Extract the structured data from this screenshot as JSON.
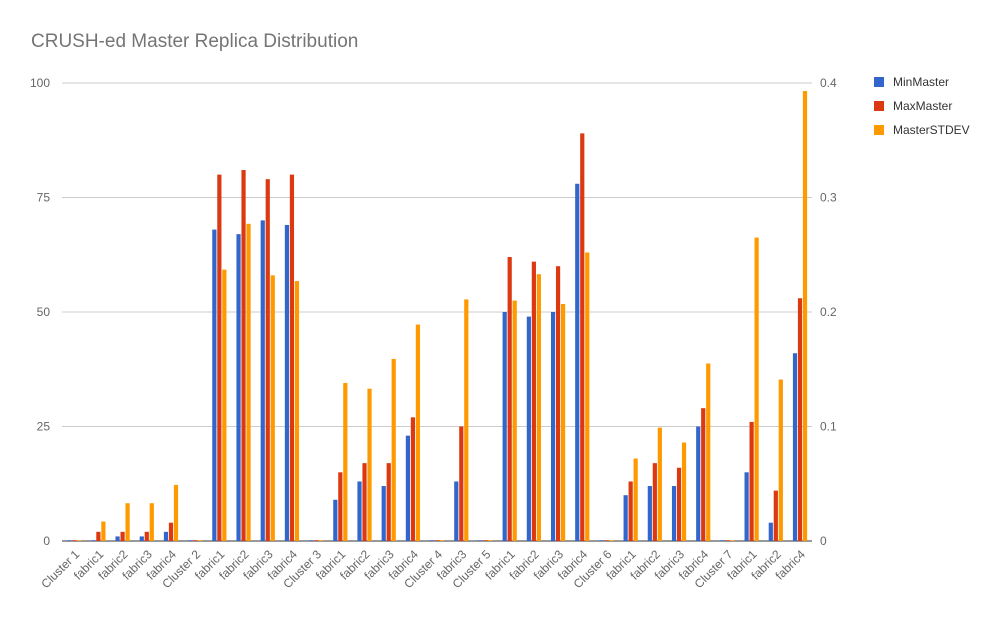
{
  "chart_data": {
    "type": "bar",
    "title": "CRUSH-ed Master Replica Distribution",
    "xlabel": "",
    "ylabel": "",
    "ylim": [
      0,
      100
    ],
    "y2lim": [
      0,
      0.4
    ],
    "yticks": [
      "0",
      "25",
      "50",
      "75",
      "100"
    ],
    "y2ticks": [
      "0",
      "0.1",
      "0.2",
      "0.3",
      "0.4"
    ],
    "grid": true,
    "legend_position": "right",
    "categories": [
      "Cluster 1",
      "fabric1",
      "fabric2",
      "fabric3",
      "fabric4",
      "Cluster 2",
      "fabric1",
      "fabric2",
      "fabric3",
      "fabric4",
      "Cluster 3",
      "fabric1",
      "fabric2",
      "fabric3",
      "fabric4",
      "Cluster 4",
      "fabric3",
      "Cluster 5",
      "fabric1",
      "fabric2",
      "fabric3",
      "fabric4",
      "Cluster 6",
      "fabric1",
      "fabric2",
      "fabric3",
      "fabric4",
      "Cluster 7",
      "fabric1",
      "fabric2",
      "fabric4"
    ],
    "series": [
      {
        "name": "MinMaster",
        "axis": "left",
        "color": "#3366cc",
        "values": [
          0,
          0,
          1,
          1,
          2,
          0,
          68,
          67,
          70,
          69,
          0,
          9,
          13,
          12,
          23,
          0,
          13,
          0,
          50,
          49,
          50,
          78,
          0,
          10,
          12,
          12,
          25,
          0,
          15,
          4,
          41
        ]
      },
      {
        "name": "MaxMaster",
        "axis": "left",
        "color": "#dc3912",
        "values": [
          0,
          2,
          2,
          2,
          4,
          0,
          80,
          81,
          79,
          80,
          0,
          15,
          17,
          17,
          27,
          0,
          25,
          0,
          62,
          61,
          60,
          89,
          0,
          13,
          17,
          16,
          29,
          0,
          26,
          11,
          53
        ]
      },
      {
        "name": "MasterSTDEV",
        "axis": "right",
        "color": "#ff9900",
        "values": [
          0,
          0.017,
          0.033,
          0.033,
          0.049,
          0,
          0.237,
          0.277,
          0.232,
          0.227,
          0,
          0.138,
          0.133,
          0.159,
          0.189,
          0,
          0.211,
          0,
          0.21,
          0.233,
          0.207,
          0.252,
          0,
          0.072,
          0.099,
          0.086,
          0.155,
          0,
          0.265,
          0.141,
          0.393
        ]
      }
    ]
  }
}
